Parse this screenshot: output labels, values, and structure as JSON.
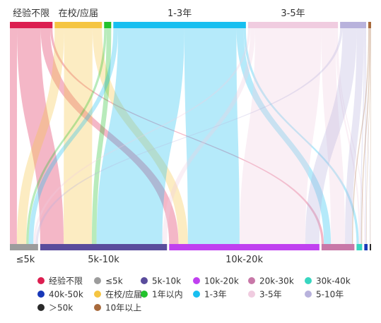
{
  "chart_data": {
    "type": "sankey",
    "title": "",
    "sources": [
      {
        "name": "经验不限",
        "color": "#dc1e50",
        "value": 9
      },
      {
        "name": "在校/应届",
        "color": "#f5c542",
        "value": 10
      },
      {
        "name": "1年以内",
        "color": "#22c22c",
        "value": 1.5
      },
      {
        "name": "1-3年",
        "color": "#18bff0",
        "value": 28
      },
      {
        "name": "3-5年",
        "color": "#f0cce0",
        "value": 19
      },
      {
        "name": "5-10年",
        "color": "#b8b2dc",
        "value": 5.5
      },
      {
        "name": "10年以上",
        "color": "#a86a3c",
        "value": 0.6
      }
    ],
    "targets": [
      {
        "name": "≤5k",
        "color": "#9c9c9c",
        "value": 6
      },
      {
        "name": "5k-10k",
        "color": "#5a4c9c",
        "value": 27
      },
      {
        "name": "10k-20k",
        "color": "#c040f0",
        "value": 32
      },
      {
        "name": "20k-30k",
        "color": "#c878a8",
        "value": 7
      },
      {
        "name": "30k-40k",
        "color": "#38d6c0",
        "value": 1.2
      },
      {
        "name": "40k-50k",
        "color": "#1838b8",
        "value": 0.7
      },
      {
        "name": "＞50k",
        "color": "#2a2a2a",
        "value": 0.3
      }
    ],
    "flows": [
      {
        "source": "经验不限",
        "target": "≤5k",
        "value": 1.5
      },
      {
        "source": "经验不限",
        "target": "5k-10k",
        "value": 5
      },
      {
        "source": "经验不限",
        "target": "10k-20k",
        "value": 2
      },
      {
        "source": "经验不限",
        "target": "20k-30k",
        "value": 0.5
      },
      {
        "source": "在校/应届",
        "target": "≤5k",
        "value": 2
      },
      {
        "source": "在校/应届",
        "target": "5k-10k",
        "value": 6
      },
      {
        "source": "在校/应届",
        "target": "10k-20k",
        "value": 2
      },
      {
        "source": "1年以内",
        "target": "≤5k",
        "value": 0.5
      },
      {
        "source": "1年以内",
        "target": "5k-10k",
        "value": 1
      },
      {
        "source": "1-3年",
        "target": "≤5k",
        "value": 1
      },
      {
        "source": "1-3年",
        "target": "5k-10k",
        "value": 14
      },
      {
        "source": "1-3年",
        "target": "10k-20k",
        "value": 11
      },
      {
        "source": "1-3年",
        "target": "20k-30k",
        "value": 1.5
      },
      {
        "source": "1-3年",
        "target": "30k-40k",
        "value": 0.5
      },
      {
        "source": "3-5年",
        "target": "≤5k",
        "value": 0.5
      },
      {
        "source": "3-5年",
        "target": "5k-10k",
        "value": 1
      },
      {
        "source": "3-5年",
        "target": "10k-20k",
        "value": 14
      },
      {
        "source": "3-5年",
        "target": "20k-30k",
        "value": 3
      },
      {
        "source": "3-5年",
        "target": "30k-40k",
        "value": 0.3
      },
      {
        "source": "3-5年",
        "target": "40k-50k",
        "value": 0.2
      },
      {
        "source": "5-10年",
        "target": "≤5k",
        "value": 0.5
      },
      {
        "source": "5-10年",
        "target": "10k-20k",
        "value": 3
      },
      {
        "source": "5-10年",
        "target": "20k-30k",
        "value": 1.5
      },
      {
        "source": "5-10年",
        "target": "30k-40k",
        "value": 0.2
      },
      {
        "source": "5-10年",
        "target": "40k-50k",
        "value": 0.2
      },
      {
        "source": "5-10年",
        "target": "＞50k",
        "value": 0.1
      },
      {
        "source": "10年以上",
        "target": "20k-30k",
        "value": 0.2
      },
      {
        "source": "10年以上",
        "target": "30k-40k",
        "value": 0.2
      },
      {
        "source": "10年以上",
        "target": "40k-50k",
        "value": 0.1
      },
      {
        "source": "10年以上",
        "target": "＞50k",
        "value": 0.1
      }
    ],
    "legend": [
      "经验不限",
      "≤5k",
      "5k-10k",
      "10k-20k",
      "20k-30k",
      "30k-40k",
      "40k-50k",
      "在校/应届",
      "1年以内",
      "1-3年",
      "3-5年",
      "5-10年",
      "＞50k",
      "10年以上"
    ],
    "legend_position": "bottom",
    "source_labels_shown": [
      "经验不限",
      "在校/应届",
      "1-3年",
      "3-5年"
    ],
    "target_labels_shown": [
      "≤5k",
      "5k-10k",
      "10k-20k"
    ]
  }
}
